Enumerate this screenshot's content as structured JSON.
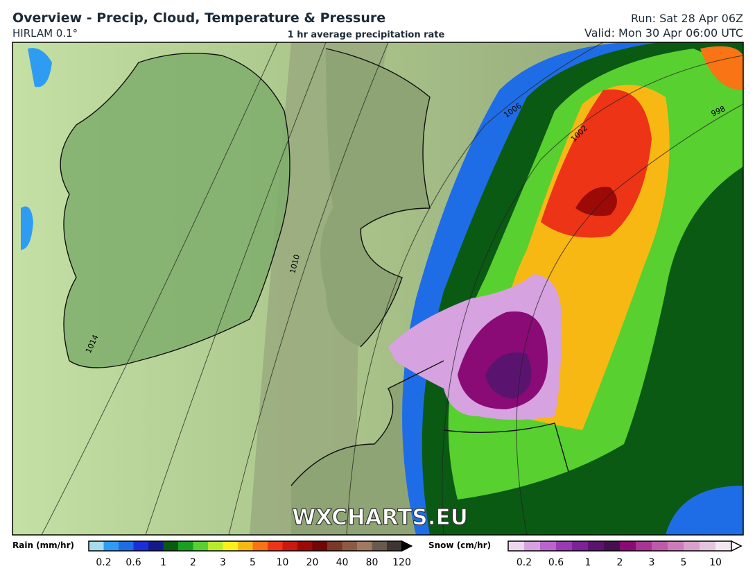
{
  "header": {
    "title": "Overview - Precip, Cloud, Temperature & Pressure",
    "model": "HIRLAM 0.1°",
    "subtitle": "1 hr average precipitation rate",
    "run": "Run: Sat 28 Apr 06Z",
    "valid": "Valid: Mon 30 Apr 06:00 UTC"
  },
  "map": {
    "watermark": "WXCHARTS.EU",
    "isobar_labels": [
      "1006",
      "1002",
      "998",
      "1010",
      "1014"
    ]
  },
  "legend": {
    "rain": {
      "label": "Rain (mm/hr)",
      "ticks": [
        "0.2",
        "0.6",
        "1",
        "2",
        "3",
        "5",
        "10",
        "20",
        "40",
        "80",
        "120"
      ],
      "colors": [
        "#a8dcec",
        "#2e9cf2",
        "#1f6de6",
        "#1b2fd8",
        "#141a8a",
        "#0a5a14",
        "#18a020",
        "#58d030",
        "#b6ec2c",
        "#f8f018",
        "#f8b814",
        "#f87414",
        "#ee3416",
        "#c81a10",
        "#9c0a08",
        "#700606",
        "#7a3826",
        "#8c5a44",
        "#a07a60",
        "#6a5a4e",
        "#3e3632"
      ]
    },
    "snow": {
      "label": "Snow (cm/hr)",
      "ticks": [
        "0.2",
        "0.6",
        "1",
        "2",
        "3",
        "5",
        "10"
      ],
      "colors": [
        "#ecd6ee",
        "#d6a2e0",
        "#b866cc",
        "#9a3ab4",
        "#7a2296",
        "#5a1470",
        "#44104e",
        "#8a0a76",
        "#a83494",
        "#be5aac",
        "#cc7cbc",
        "#d8a0cc",
        "#e4c4dc",
        "#f2e6f0"
      ]
    }
  }
}
